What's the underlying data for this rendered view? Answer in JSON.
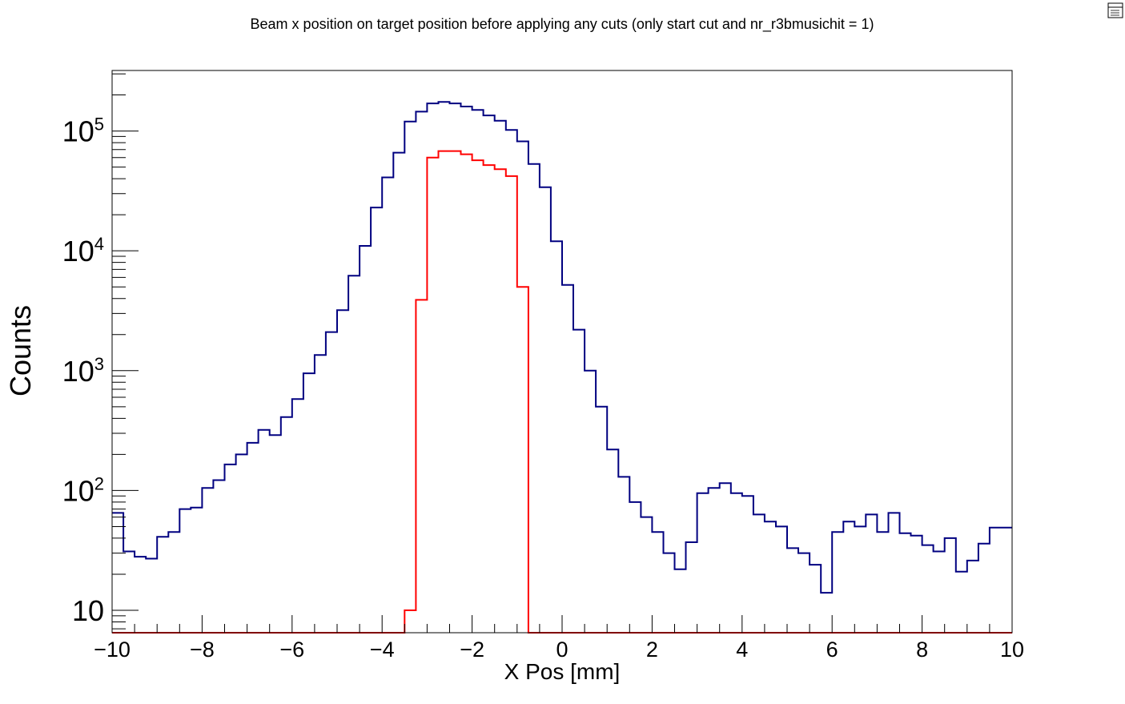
{
  "canvas_icon": "canvas-editor-icon",
  "chart_data": {
    "type": "line",
    "style": "step-histogram",
    "title": "Beam x position on target position before applying any cuts (only start cut and nr_r3bmusichit = 1)",
    "xlabel": "X Pos [mm]",
    "ylabel": "Counts",
    "xlim": [
      -10,
      10
    ],
    "ylim": [
      6.5,
      320000
    ],
    "y_scale": "log",
    "grid": false,
    "x_ticks": [
      -10,
      -8,
      -6,
      -4,
      -2,
      0,
      2,
      4,
      6,
      8,
      10
    ],
    "x_tick_labels": [
      "−10",
      "−8",
      "−6",
      "−4",
      "−2",
      "0",
      "2",
      "4",
      "6",
      "8",
      "10"
    ],
    "y_ticks": [
      {
        "value": 10,
        "base": "10",
        "exp": ""
      },
      {
        "value": 100,
        "base": "10",
        "exp": "2"
      },
      {
        "value": 1000,
        "base": "10",
        "exp": "3"
      },
      {
        "value": 10000,
        "base": "10",
        "exp": "4"
      },
      {
        "value": 100000,
        "base": "10",
        "exp": "5"
      }
    ],
    "bin_edges_start": -10,
    "bin_width": 0.25,
    "series": [
      {
        "color": "#000080",
        "values": [
          65,
          31,
          28,
          27,
          41,
          45,
          70,
          72,
          105,
          122,
          165,
          200,
          250,
          320,
          290,
          410,
          580,
          950,
          1350,
          2100,
          3200,
          6200,
          11000,
          23000,
          41000,
          66000,
          120000,
          145000,
          170000,
          175000,
          170000,
          160000,
          150000,
          135000,
          122000,
          102000,
          82000,
          53000,
          34000,
          12000,
          5200,
          2200,
          1000,
          500,
          220,
          130,
          80,
          60,
          45,
          30,
          22,
          37,
          95,
          105,
          115,
          95,
          90,
          63,
          55,
          50,
          33,
          30,
          24,
          14,
          45,
          55,
          50,
          63,
          45,
          65,
          44,
          42,
          35,
          31,
          40,
          21,
          26,
          36,
          49,
          49
        ]
      },
      {
        "color": "#ff0000",
        "values": [
          6.5,
          6.5,
          6.5,
          6.5,
          6.5,
          6.5,
          6.5,
          6.5,
          6.5,
          6.5,
          6.5,
          6.5,
          6.5,
          6.5,
          6.5,
          6.5,
          6.5,
          6.5,
          6.5,
          6.5,
          6.5,
          6.5,
          6.5,
          6.5,
          6.5,
          6.5,
          10,
          3900,
          60000,
          68000,
          68000,
          64000,
          57000,
          52000,
          48000,
          42000,
          5000,
          6.5,
          6.5,
          6.5,
          6.5,
          6.5,
          6.5,
          6.5,
          6.5,
          6.5,
          6.5,
          6.5,
          6.5,
          6.5,
          6.5,
          6.5,
          6.5,
          6.5,
          6.5,
          6.5,
          6.5,
          6.5,
          6.5,
          6.5,
          6.5,
          6.5,
          6.5,
          6.5,
          6.5,
          6.5,
          6.5,
          6.5,
          6.5,
          6.5,
          6.5,
          6.5,
          6.5,
          6.5,
          6.5,
          6.5,
          6.5,
          6.5,
          6.5,
          6.5
        ]
      }
    ]
  }
}
